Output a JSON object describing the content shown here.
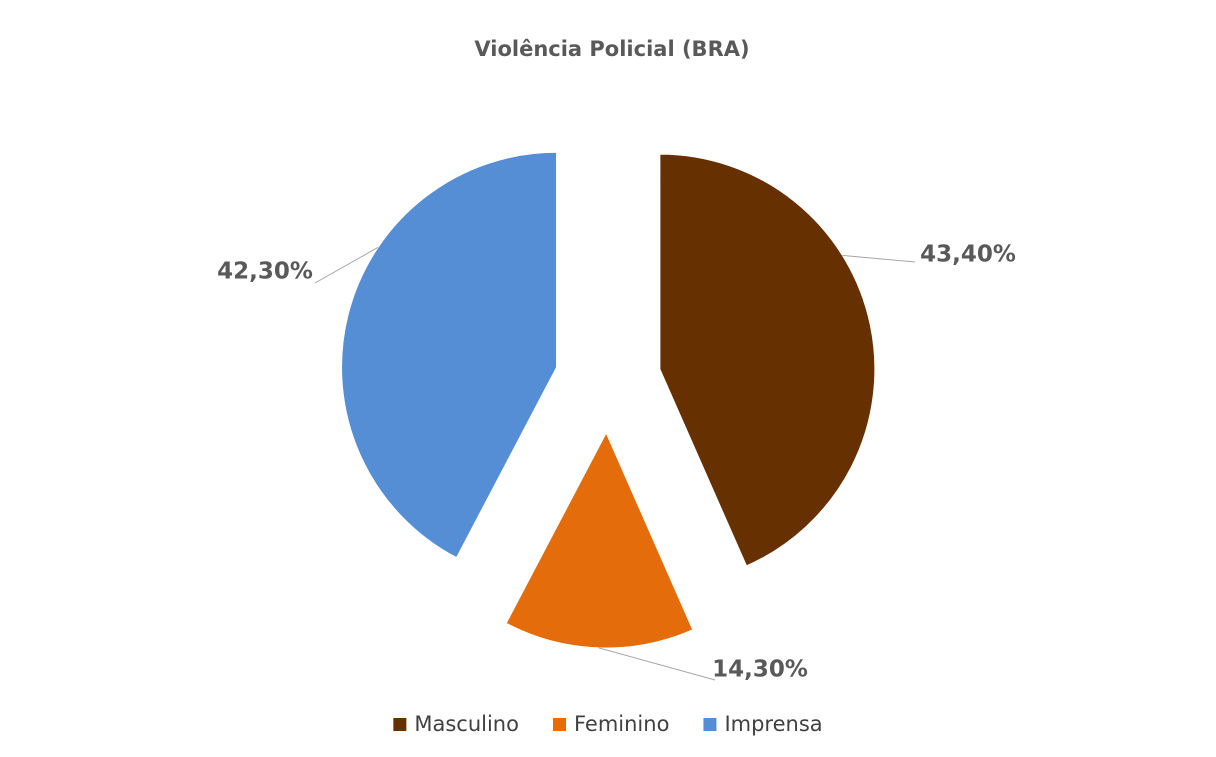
{
  "chart_data": {
    "type": "pie",
    "title": "Violência Policial (BRA)",
    "categories": [
      "Masculino",
      "Feminino",
      "Imprensa"
    ],
    "values": [
      43.4,
      14.3,
      42.3
    ],
    "value_labels": [
      "43,40%",
      "14,30%",
      "42,30%"
    ],
    "colors": [
      "#663000",
      "#e46c0a",
      "#558ed5"
    ],
    "legend": "bottom"
  }
}
